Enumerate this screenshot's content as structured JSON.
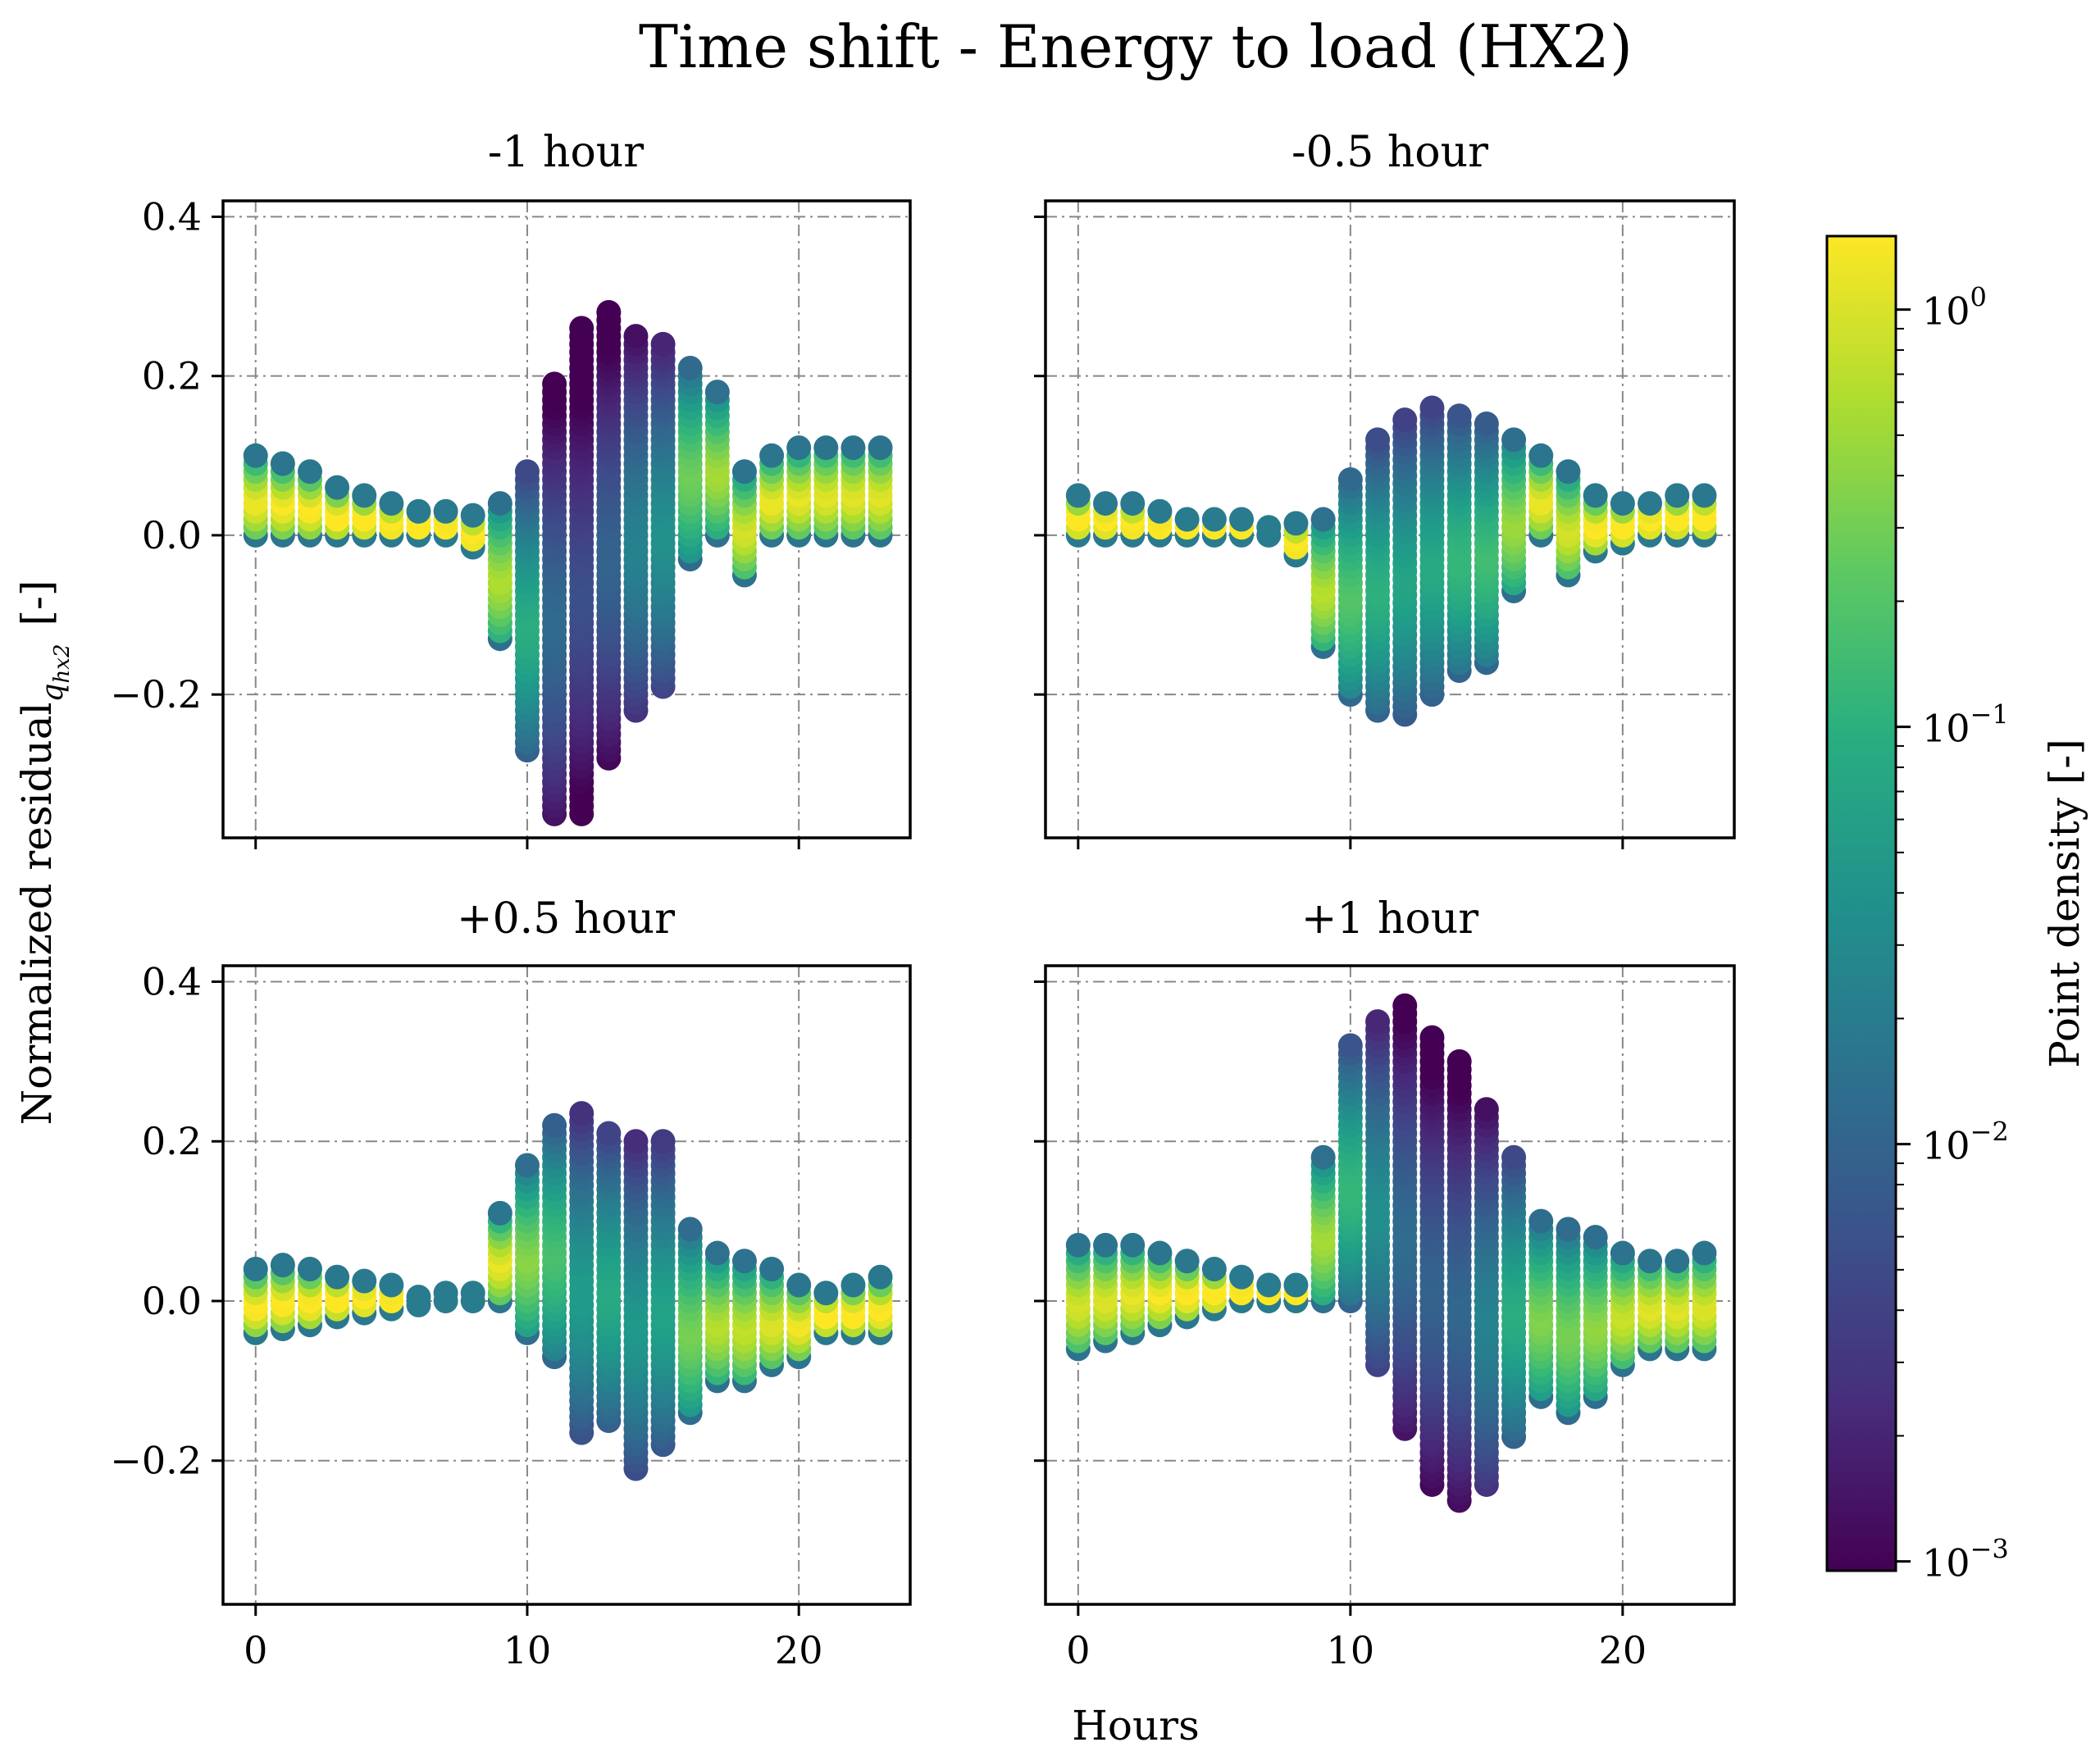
{
  "chart_data": {
    "type": "scatter",
    "title": "Time shift - Energy to load (HX2)",
    "xlabel": "Hours",
    "ylabel": "Normalized residual",
    "ylabel_sub": "q",
    "ylabel_subsub": "hx2",
    "ylabel_unit": "[-]",
    "xlim": [
      -1.2,
      24.1
    ],
    "ylim": [
      -0.38,
      0.42
    ],
    "xticks": [
      "0",
      "10",
      "20"
    ],
    "xtick_values": [
      0,
      10,
      20
    ],
    "yticks": [
      "0.4",
      "0.2",
      "0.0",
      "−0.2"
    ],
    "ytick_values": [
      0.4,
      0.2,
      0.0,
      -0.2
    ],
    "grid": true,
    "colormap": "viridis",
    "colorbar": {
      "label": "Point density [-]",
      "scale": "log",
      "range": [
        0.00095,
        1.5
      ],
      "ticks": [
        {
          "base": "10",
          "exp": "0",
          "value": 1
        },
        {
          "base": "10",
          "exp": "−1",
          "value": 0.1
        },
        {
          "base": "10",
          "exp": "−2",
          "value": 0.01
        },
        {
          "base": "10",
          "exp": "−3",
          "value": 0.001
        }
      ]
    },
    "panels": [
      {
        "title": "-1 hour",
        "ranges": [
          [
            0,
            0.0,
            0.1
          ],
          [
            1,
            0.0,
            0.09
          ],
          [
            2,
            0.0,
            0.08
          ],
          [
            3,
            0.0,
            0.06
          ],
          [
            4,
            0.0,
            0.05
          ],
          [
            5,
            0.0,
            0.04
          ],
          [
            6,
            0.0,
            0.035
          ],
          [
            7,
            0.0,
            0.03
          ],
          [
            8,
            -0.015,
            0.025
          ],
          [
            9,
            -0.13,
            0.04
          ],
          [
            10,
            -0.27,
            0.08
          ],
          [
            11,
            -0.35,
            0.19
          ],
          [
            12,
            -0.35,
            0.26
          ],
          [
            13,
            -0.28,
            0.28
          ],
          [
            14,
            -0.22,
            0.25
          ],
          [
            15,
            -0.19,
            0.24
          ],
          [
            16,
            -0.03,
            0.21
          ],
          [
            17,
            0.0,
            0.18
          ],
          [
            18,
            -0.05,
            0.08
          ],
          [
            19,
            0.0,
            0.1
          ],
          [
            20,
            0.0,
            0.11
          ],
          [
            21,
            0.0,
            0.115
          ],
          [
            22,
            0.0,
            0.115
          ],
          [
            23,
            0.0,
            0.115
          ]
        ]
      },
      {
        "title": "-0.5 hour",
        "ranges": [
          [
            0,
            0.0,
            0.05
          ],
          [
            1,
            0.0,
            0.045
          ],
          [
            2,
            0.0,
            0.04
          ],
          [
            3,
            0.0,
            0.03
          ],
          [
            4,
            0.0,
            0.025
          ],
          [
            5,
            0.0,
            0.02
          ],
          [
            6,
            0.0,
            0.02
          ],
          [
            7,
            0.0,
            0.015
          ],
          [
            8,
            -0.025,
            0.015
          ],
          [
            9,
            -0.14,
            0.02
          ],
          [
            10,
            -0.2,
            0.075
          ],
          [
            11,
            -0.22,
            0.12
          ],
          [
            12,
            -0.225,
            0.15
          ],
          [
            13,
            -0.2,
            0.16
          ],
          [
            14,
            -0.17,
            0.15
          ],
          [
            15,
            -0.16,
            0.14
          ],
          [
            16,
            -0.07,
            0.12
          ],
          [
            17,
            0.0,
            0.1
          ],
          [
            18,
            -0.05,
            0.08
          ],
          [
            19,
            -0.02,
            0.05
          ],
          [
            20,
            -0.01,
            0.04
          ],
          [
            21,
            0.0,
            0.045
          ],
          [
            22,
            0.0,
            0.05
          ],
          [
            23,
            0.0,
            0.055
          ]
        ]
      },
      {
        "title": "+0.5 hour",
        "ranges": [
          [
            0,
            -0.04,
            0.04
          ],
          [
            1,
            -0.035,
            0.045
          ],
          [
            2,
            -0.03,
            0.04
          ],
          [
            3,
            -0.02,
            0.035
          ],
          [
            4,
            -0.015,
            0.03
          ],
          [
            5,
            -0.01,
            0.02
          ],
          [
            6,
            -0.005,
            0.01
          ],
          [
            7,
            0.0,
            0.01
          ],
          [
            8,
            0.0,
            0.01
          ],
          [
            9,
            0.0,
            0.11
          ],
          [
            10,
            -0.04,
            0.17
          ],
          [
            11,
            -0.07,
            0.22
          ],
          [
            12,
            -0.165,
            0.235
          ],
          [
            13,
            -0.15,
            0.21
          ],
          [
            14,
            -0.21,
            0.2
          ],
          [
            15,
            -0.18,
            0.2
          ],
          [
            16,
            -0.14,
            0.09
          ],
          [
            17,
            -0.1,
            0.06
          ],
          [
            18,
            -0.1,
            0.05
          ],
          [
            19,
            -0.08,
            0.04
          ],
          [
            20,
            -0.07,
            0.025
          ],
          [
            21,
            -0.04,
            0.015
          ],
          [
            22,
            -0.04,
            0.02
          ],
          [
            23,
            -0.04,
            0.03
          ]
        ]
      },
      {
        "title": "+1 hour",
        "ranges": [
          [
            0,
            -0.06,
            0.07
          ],
          [
            1,
            -0.05,
            0.07
          ],
          [
            2,
            -0.04,
            0.07
          ],
          [
            3,
            -0.03,
            0.06
          ],
          [
            4,
            -0.02,
            0.05
          ],
          [
            5,
            -0.01,
            0.04
          ],
          [
            6,
            0.0,
            0.03
          ],
          [
            7,
            0.0,
            0.025
          ],
          [
            8,
            0.0,
            0.02
          ],
          [
            9,
            0.0,
            0.18
          ],
          [
            10,
            0.0,
            0.32
          ],
          [
            11,
            -0.08,
            0.355
          ],
          [
            12,
            -0.16,
            0.375
          ],
          [
            13,
            -0.23,
            0.33
          ],
          [
            14,
            -0.25,
            0.3
          ],
          [
            15,
            -0.23,
            0.24
          ],
          [
            16,
            -0.17,
            0.18
          ],
          [
            17,
            -0.12,
            0.1
          ],
          [
            18,
            -0.14,
            0.09
          ],
          [
            19,
            -0.12,
            0.08
          ],
          [
            20,
            -0.08,
            0.06
          ],
          [
            21,
            -0.06,
            0.055
          ],
          [
            22,
            -0.06,
            0.055
          ],
          [
            23,
            -0.06,
            0.06
          ]
        ]
      }
    ]
  }
}
